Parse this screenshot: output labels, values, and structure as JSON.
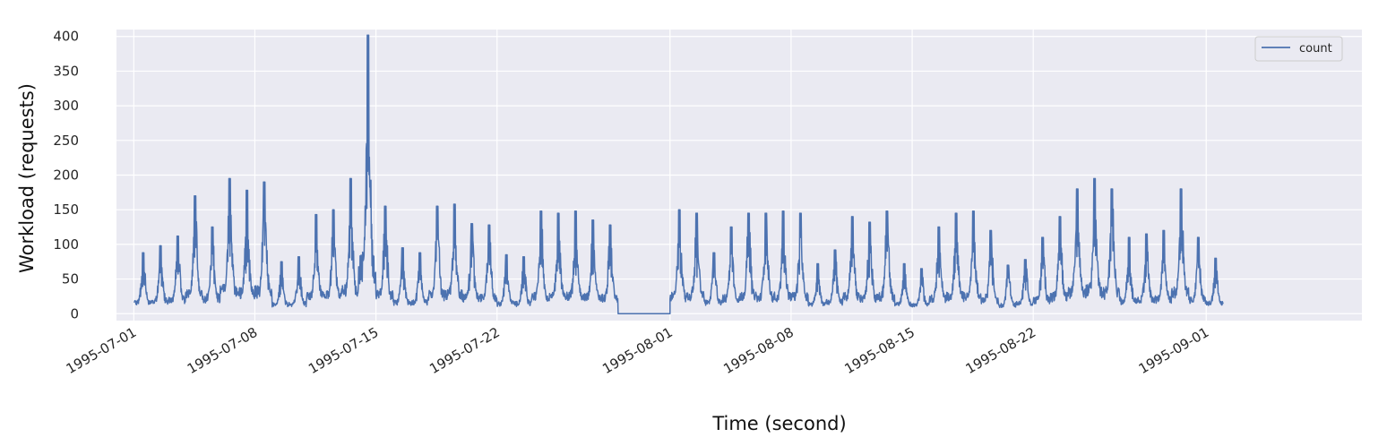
{
  "chart_data": {
    "type": "line",
    "xlabel": "Time (second)",
    "ylabel": "Workload (requests)",
    "x_range": [
      "1995-06-30",
      "1995-09-10"
    ],
    "ylim": [
      -10,
      410
    ],
    "yticks": [
      0,
      50,
      100,
      150,
      200,
      250,
      300,
      350,
      400
    ],
    "xticks": [
      "1995-07-01",
      "1995-07-08",
      "1995-07-15",
      "1995-07-22",
      "1995-08-01",
      "1995-08-08",
      "1995-08-15",
      "1995-08-22",
      "1995-09-01"
    ],
    "grid": true,
    "legend_position": "top-right",
    "color": "#4c72b0",
    "series": [
      {
        "name": "count",
        "x": [
          "1995-07-01",
          "1995-07-02",
          "1995-07-03",
          "1995-07-04",
          "1995-07-05",
          "1995-07-06",
          "1995-07-07",
          "1995-07-08",
          "1995-07-09",
          "1995-07-10",
          "1995-07-11",
          "1995-07-12",
          "1995-07-13",
          "1995-07-14",
          "1995-07-15",
          "1995-07-16",
          "1995-07-17",
          "1995-07-18",
          "1995-07-19",
          "1995-07-20",
          "1995-07-21",
          "1995-07-22",
          "1995-07-23",
          "1995-07-24",
          "1995-07-25",
          "1995-07-26",
          "1995-07-27",
          "1995-07-28",
          "1995-08-01",
          "1995-08-02",
          "1995-08-03",
          "1995-08-04",
          "1995-08-05",
          "1995-08-06",
          "1995-08-07",
          "1995-08-08",
          "1995-08-09",
          "1995-08-10",
          "1995-08-11",
          "1995-08-12",
          "1995-08-13",
          "1995-08-14",
          "1995-08-15",
          "1995-08-16",
          "1995-08-17",
          "1995-08-18",
          "1995-08-19",
          "1995-08-20",
          "1995-08-21",
          "1995-08-22",
          "1995-08-23",
          "1995-08-24",
          "1995-08-25",
          "1995-08-26",
          "1995-08-27",
          "1995-08-28",
          "1995-08-29",
          "1995-08-30",
          "1995-08-31",
          "1995-09-01"
        ],
        "low": [
          5,
          5,
          5,
          5,
          5,
          5,
          5,
          5,
          3,
          3,
          5,
          5,
          5,
          5,
          5,
          3,
          5,
          5,
          5,
          5,
          5,
          3,
          3,
          5,
          5,
          5,
          5,
          5,
          3,
          5,
          5,
          5,
          5,
          3,
          3,
          5,
          5,
          5,
          5,
          3,
          3,
          5,
          5,
          5,
          5,
          5,
          3,
          3,
          5,
          5,
          5,
          5,
          5,
          3,
          3,
          5,
          5,
          5,
          5,
          5
        ],
        "high": [
          88,
          98,
          112,
          170,
          125,
          195,
          178,
          190,
          75,
          82,
          143,
          150,
          195,
          402,
          155,
          95,
          88,
          155,
          158,
          130,
          128,
          85,
          82,
          148,
          145,
          148,
          135,
          128,
          150,
          145,
          88,
          125,
          145,
          145,
          148,
          145,
          72,
          92,
          140,
          132,
          148,
          72,
          65,
          125,
          145,
          148,
          120,
          70,
          78,
          110,
          140,
          180,
          195,
          180,
          110,
          115,
          120,
          180,
          110,
          80
        ]
      }
    ]
  }
}
